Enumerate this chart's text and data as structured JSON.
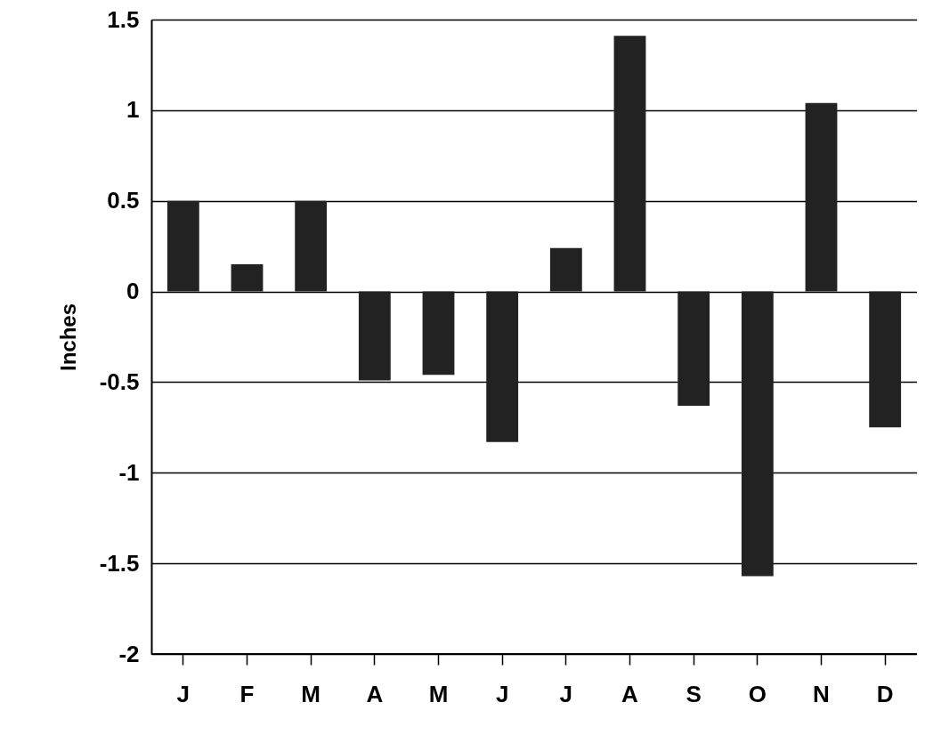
{
  "chart_data": {
    "type": "bar",
    "ylabel": "Inches",
    "categories": [
      "J",
      "F",
      "M",
      "A",
      "M",
      "J",
      "J",
      "A",
      "S",
      "O",
      "N",
      "D"
    ],
    "values": [
      0.5,
      0.15,
      0.5,
      -0.49,
      -0.46,
      -0.83,
      0.24,
      1.41,
      -0.63,
      -1.57,
      1.04,
      -0.75
    ],
    "color": "#222222",
    "ylim": [
      -2,
      1.5
    ],
    "yticks": [
      -2,
      -1.5,
      -1,
      -0.5,
      0,
      0.5,
      1,
      1.5
    ],
    "grid": "y"
  }
}
